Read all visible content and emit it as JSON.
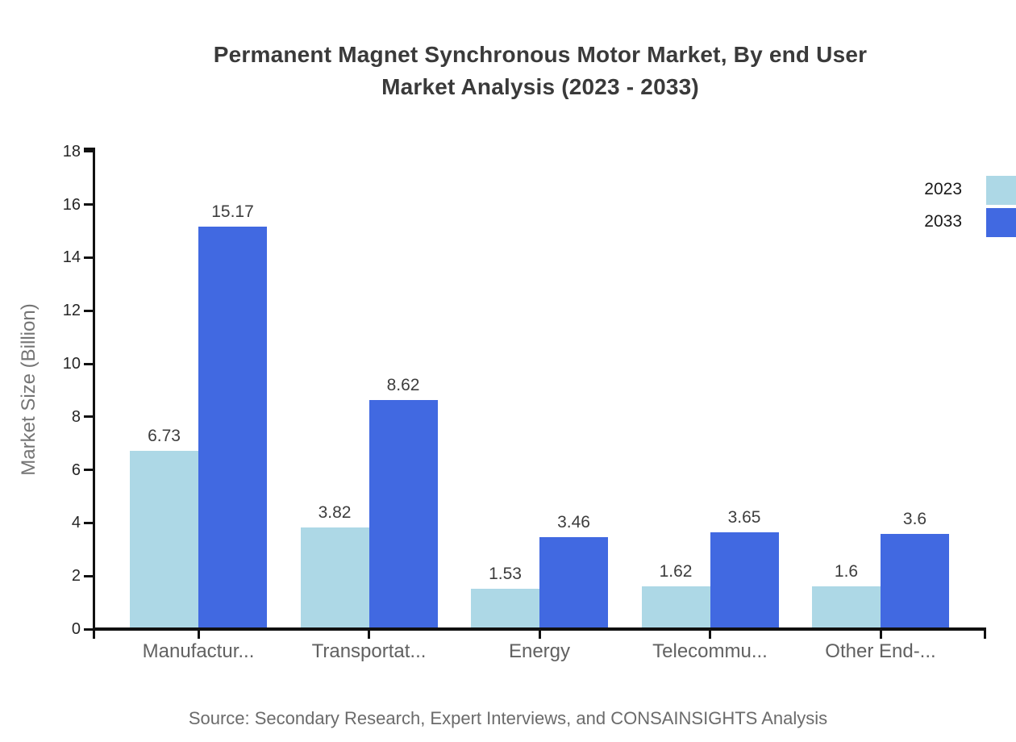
{
  "title": {
    "line1": "Permanent Magnet Synchronous Motor Market, By end User",
    "line2": "Market Analysis (2023 - 2033)"
  },
  "source_text": "Source: Secondary Research, Expert Interviews, and CONSAINSIGHTS Analysis",
  "colors": {
    "series_2023": "#ADD8E6",
    "series_2033": "#4169E1",
    "axis": "#111111",
    "title_text": "#3a3a3a",
    "category_text": "#616161",
    "value_text": "#3d3d3d",
    "source_text": "#6b6b6b"
  },
  "chart_data": {
    "type": "bar",
    "title": "Permanent Magnet Synchronous Motor Market, By end User Market Analysis (2023 - 2033)",
    "categories": [
      "Manufactur...",
      "Transportat...",
      "Energy",
      "Telecommu...",
      "Other End-..."
    ],
    "series": [
      {
        "name": "2023",
        "color": "#ADD8E6",
        "values": [
          6.73,
          3.82,
          1.53,
          1.62,
          1.6
        ],
        "value_labels": [
          "6.73",
          "3.82",
          "1.53",
          "1.62",
          "1.6"
        ]
      },
      {
        "name": "2033",
        "color": "#4169E1",
        "values": [
          15.17,
          8.62,
          3.46,
          3.65,
          3.6
        ],
        "value_labels": [
          "15.17",
          "8.62",
          "3.46",
          "3.65",
          "3.6"
        ]
      }
    ],
    "xlabel": "",
    "ylabel": "Market Size (Billion)",
    "ylim": [
      0,
      18
    ],
    "ytick_step": 2,
    "ytick_labels": [
      "0",
      "2",
      "4",
      "6",
      "8",
      "10",
      "12",
      "14",
      "16",
      "18"
    ],
    "grid": false,
    "legend_position": "top-right",
    "legend_marker_side": "right"
  }
}
